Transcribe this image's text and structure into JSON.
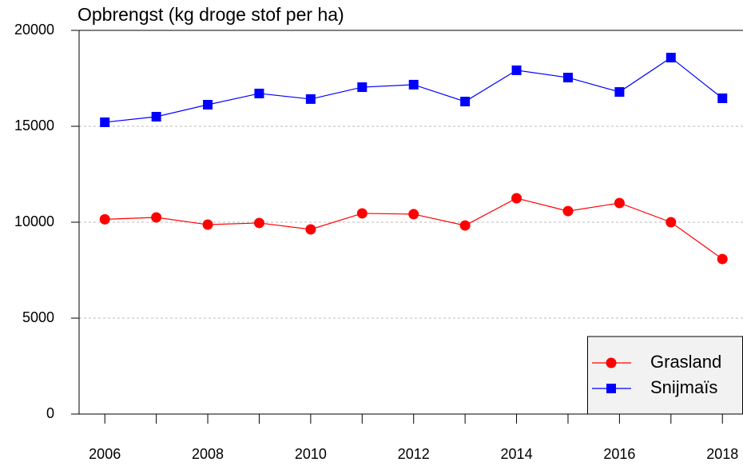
{
  "chart_data": {
    "type": "line",
    "title": "Opbrengst (kg droge stof per ha)",
    "x": [
      2006,
      2007,
      2008,
      2009,
      2010,
      2011,
      2012,
      2013,
      2014,
      2015,
      2016,
      2017,
      2018
    ],
    "series": [
      {
        "name": "Grasland",
        "color": "#ff0000",
        "marker": "circle",
        "values": [
          10150,
          10250,
          9875,
          9960,
          9625,
          10460,
          10420,
          9830,
          11250,
          10580,
          11000,
          10000,
          8080
        ]
      },
      {
        "name": "Snijmaïs",
        "color": "#0000ff",
        "marker": "square",
        "values": [
          15210,
          15500,
          16125,
          16710,
          16420,
          17040,
          17170,
          16290,
          17920,
          17540,
          16790,
          18580,
          16460
        ]
      }
    ],
    "xlim": [
      2005.5,
      2018.4
    ],
    "xticks": [
      2006,
      2008,
      2010,
      2012,
      2014,
      2016,
      2018
    ],
    "ylim": [
      0,
      20000
    ],
    "yticks": [
      0,
      5000,
      10000,
      15000,
      20000
    ],
    "grid": true,
    "legend": "lower right"
  }
}
